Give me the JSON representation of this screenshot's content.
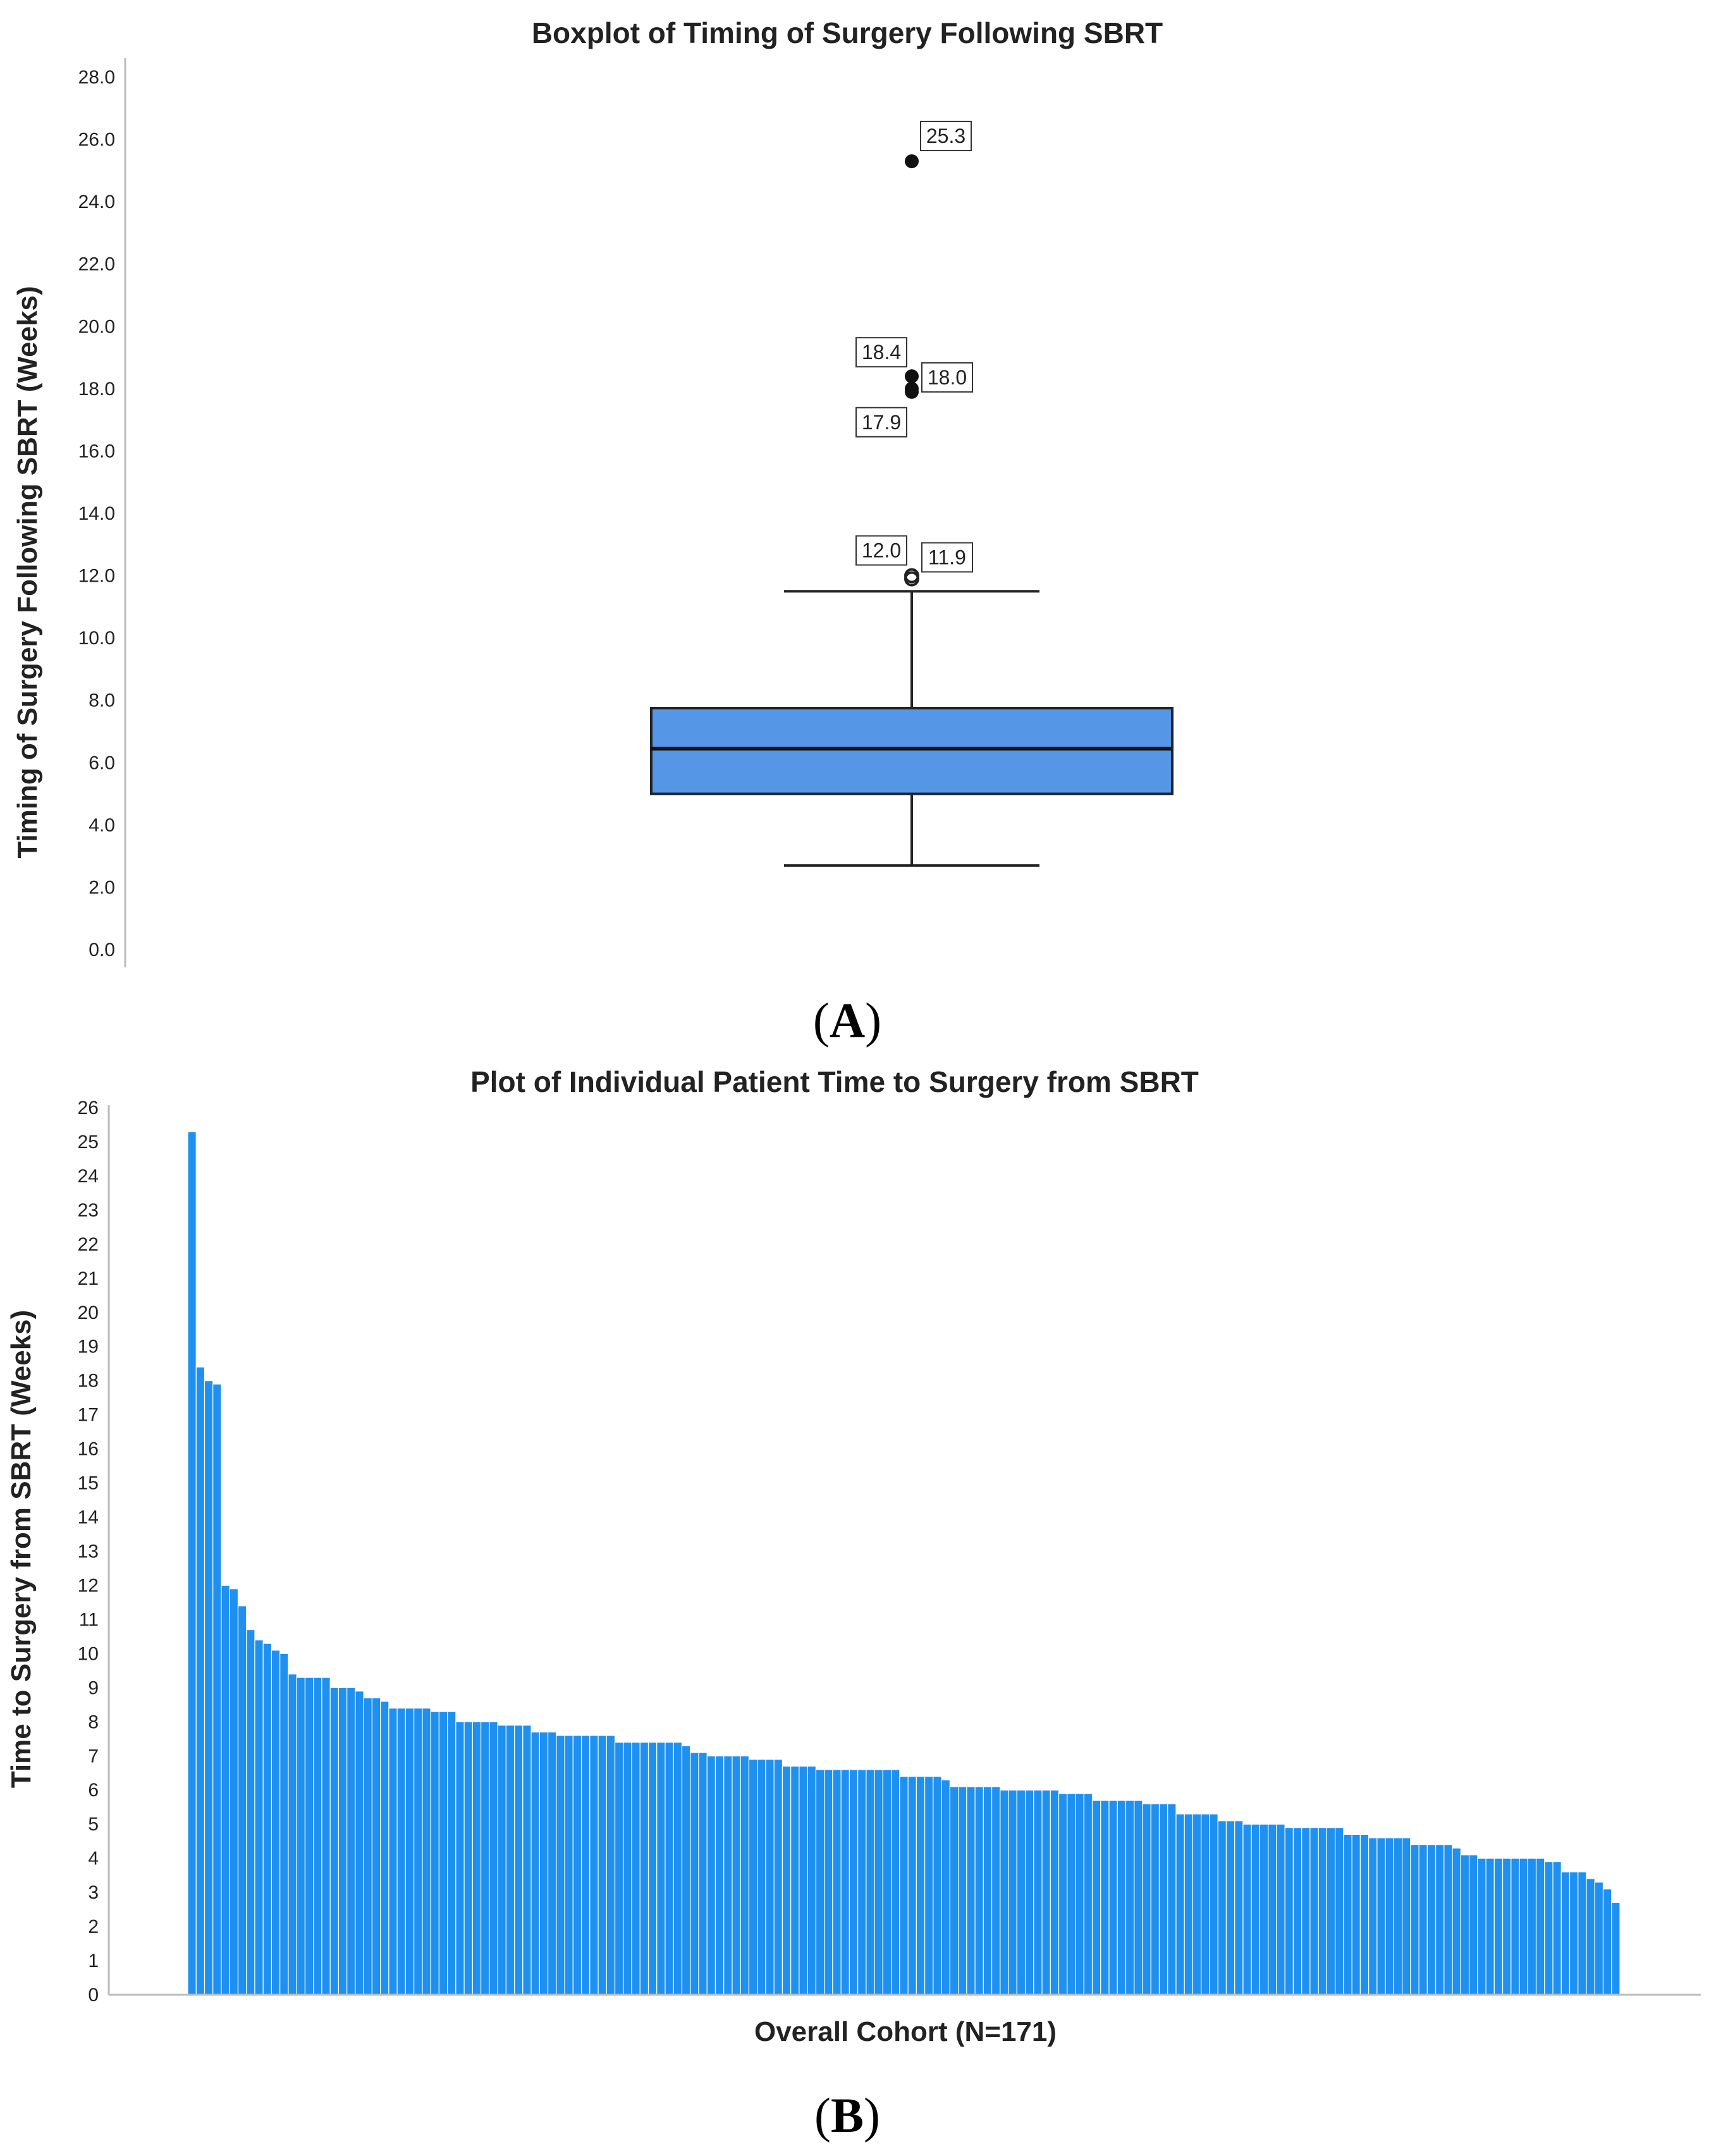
{
  "panels": [
    {
      "letter": "A"
    },
    {
      "letter": "B"
    }
  ],
  "chart_data": [
    {
      "type": "boxplot",
      "title": "Boxplot of Timing of Surgery Following SBRT",
      "ylabel": "Timing of Surgery Following SBRT (Weeks)",
      "xlabel": "",
      "ylim": [
        0,
        28
      ],
      "yticks": [
        "0.0",
        "2.0",
        "4.0",
        "6.0",
        "8.0",
        "10.0",
        "12.0",
        "14.0",
        "16.0",
        "18.0",
        "20.0",
        "22.0",
        "24.0",
        "26.0",
        "28.0"
      ],
      "grid": false,
      "box": {
        "whisker_low": 2.7,
        "q1": 5.0,
        "median": 6.45,
        "q3": 7.75,
        "whisker_high": 11.5
      },
      "color": "#5596e6",
      "outliers": [
        {
          "value": 12.0,
          "label": "12.0",
          "kind": "mild"
        },
        {
          "value": 11.9,
          "label": "11.9",
          "kind": "mild"
        },
        {
          "value": 18.4,
          "label": "18.4",
          "kind": "extreme"
        },
        {
          "value": 18.0,
          "label": "18.0",
          "kind": "extreme"
        },
        {
          "value": 17.9,
          "label": "17.9",
          "kind": "extreme"
        },
        {
          "value": 25.3,
          "label": "25.3",
          "kind": "extreme"
        }
      ]
    },
    {
      "type": "bar",
      "title": "Plot of Individual Patient Time to Surgery from SBRT",
      "ylabel": "Time to Surgery from SBRT (Weeks)",
      "xlabel": "Overall Cohort (N=171)",
      "ylim": [
        0,
        26
      ],
      "yticks": [
        "0",
        "1",
        "2",
        "3",
        "4",
        "5",
        "6",
        "7",
        "8",
        "9",
        "10",
        "11",
        "12",
        "13",
        "14",
        "15",
        "16",
        "17",
        "18",
        "19",
        "20",
        "21",
        "22",
        "23",
        "24",
        "25",
        "26"
      ],
      "grid": false,
      "color": "#1e90f0",
      "values": [
        25.3,
        18.4,
        18.0,
        17.9,
        12.0,
        11.9,
        11.4,
        10.7,
        10.4,
        10.3,
        10.1,
        10.0,
        9.4,
        9.3,
        9.3,
        9.3,
        9.3,
        9.0,
        9.0,
        9.0,
        8.9,
        8.7,
        8.7,
        8.6,
        8.4,
        8.4,
        8.4,
        8.4,
        8.4,
        8.3,
        8.3,
        8.3,
        8.0,
        8.0,
        8.0,
        8.0,
        8.0,
        7.9,
        7.9,
        7.9,
        7.9,
        7.7,
        7.7,
        7.7,
        7.6,
        7.6,
        7.6,
        7.6,
        7.6,
        7.6,
        7.6,
        7.4,
        7.4,
        7.4,
        7.4,
        7.4,
        7.4,
        7.4,
        7.4,
        7.3,
        7.1,
        7.1,
        7.0,
        7.0,
        7.0,
        7.0,
        7.0,
        6.9,
        6.9,
        6.9,
        6.9,
        6.7,
        6.7,
        6.7,
        6.7,
        6.6,
        6.6,
        6.6,
        6.6,
        6.6,
        6.6,
        6.6,
        6.6,
        6.6,
        6.6,
        6.4,
        6.4,
        6.4,
        6.4,
        6.4,
        6.3,
        6.1,
        6.1,
        6.1,
        6.1,
        6.1,
        6.1,
        6.0,
        6.0,
        6.0,
        6.0,
        6.0,
        6.0,
        6.0,
        5.9,
        5.9,
        5.9,
        5.9,
        5.7,
        5.7,
        5.7,
        5.7,
        5.7,
        5.7,
        5.6,
        5.6,
        5.6,
        5.6,
        5.3,
        5.3,
        5.3,
        5.3,
        5.3,
        5.1,
        5.1,
        5.1,
        5.0,
        5.0,
        5.0,
        5.0,
        5.0,
        4.9,
        4.9,
        4.9,
        4.9,
        4.9,
        4.9,
        4.9,
        4.7,
        4.7,
        4.7,
        4.6,
        4.6,
        4.6,
        4.6,
        4.6,
        4.4,
        4.4,
        4.4,
        4.4,
        4.4,
        4.3,
        4.1,
        4.1,
        4.0,
        4.0,
        4.0,
        4.0,
        4.0,
        4.0,
        4.0,
        4.0,
        3.9,
        3.9,
        3.6,
        3.6,
        3.6,
        3.4,
        3.3,
        3.1,
        2.7
      ]
    }
  ]
}
